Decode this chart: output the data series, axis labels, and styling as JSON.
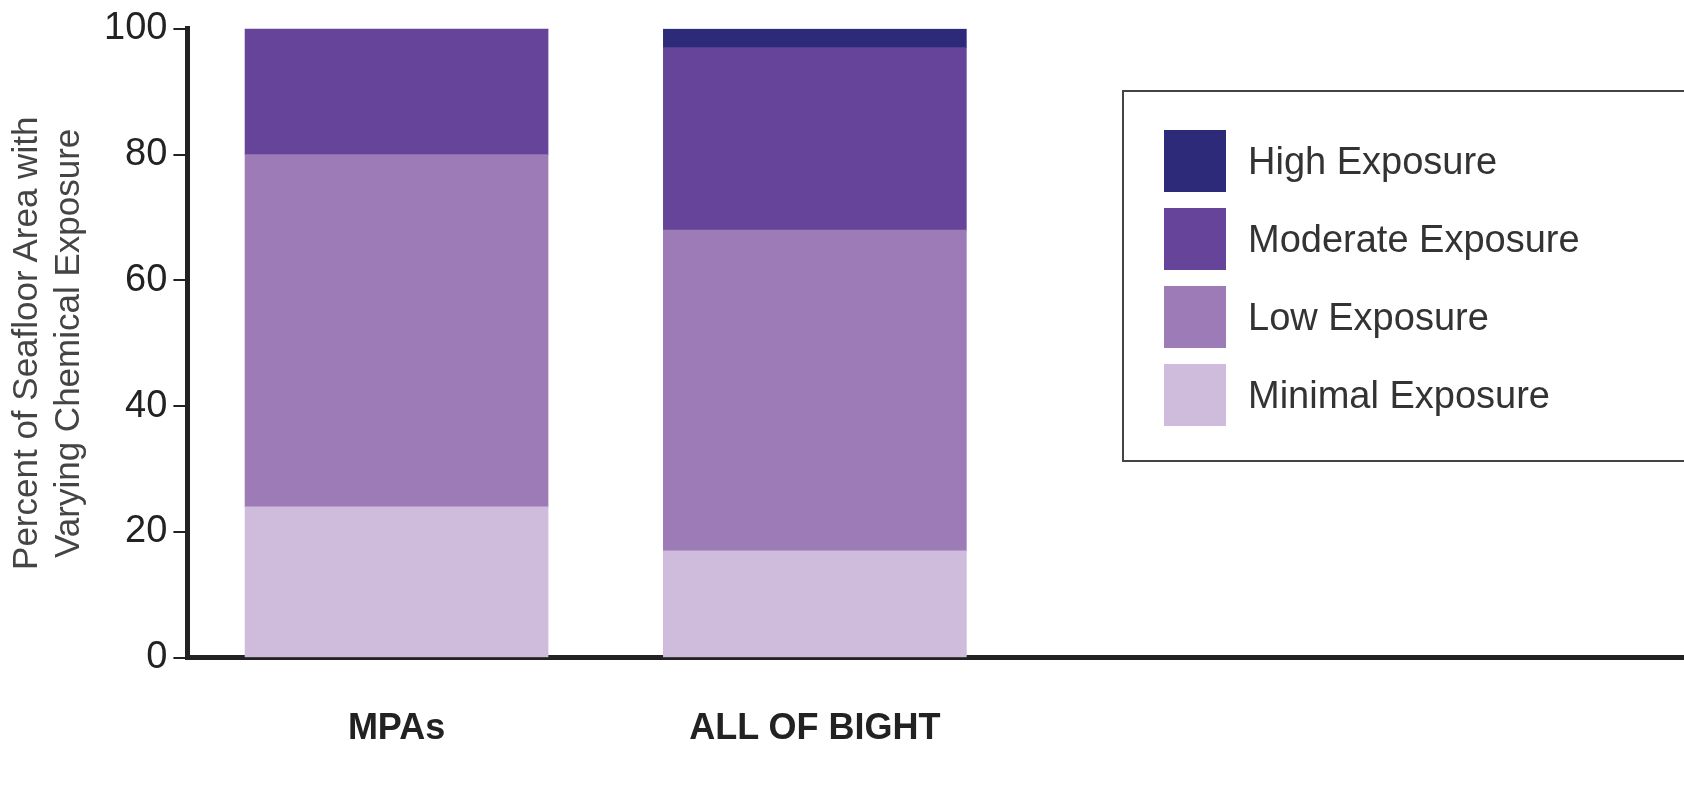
{
  "chart_data": {
    "type": "bar",
    "stacked": true,
    "categories": [
      "MPAs",
      "ALL OF BIGHT"
    ],
    "ylabel": "Percent of Seafloor Area with\nVarying Chemical Exposure",
    "ylim": [
      0,
      100
    ],
    "yticks": [
      0,
      20,
      40,
      60,
      80,
      100
    ],
    "grid": false,
    "legend": "top right",
    "series": [
      {
        "name": "Minimal Exposure",
        "color": "#cfbbdb",
        "values": [
          24,
          17
        ]
      },
      {
        "name": "Low Exposure",
        "color": "#9c7bb7",
        "values": [
          56,
          51
        ]
      },
      {
        "name": "Moderate Exposure",
        "color": "#664499",
        "values": [
          20,
          29
        ]
      },
      {
        "name": "High Exposure",
        "color": "#2e2a7a",
        "values": [
          0,
          3
        ]
      }
    ]
  }
}
